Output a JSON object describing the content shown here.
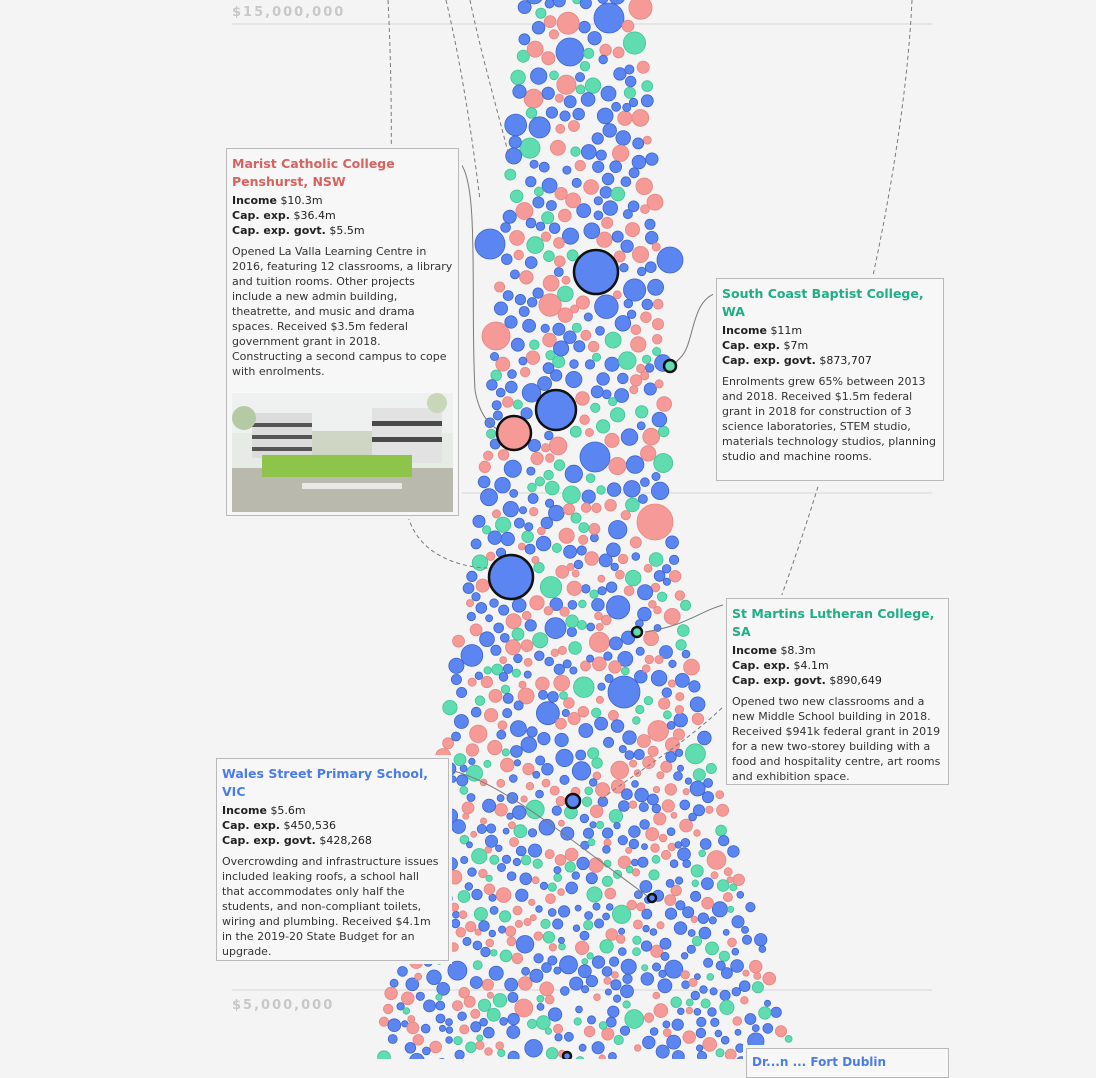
{
  "chart_data": {
    "type": "scatter",
    "subtype": "beeswarm",
    "y_axis": {
      "tick_labels": [
        "$15,000,000",
        "$5,000,000"
      ]
    },
    "series_colors": {
      "blue": "#5b86f2",
      "pink": "#f59a97",
      "teal": "#5fdcb0"
    },
    "highlighted": [
      {
        "school": "Marist Catholic College Penshurst, NSW",
        "income": "$10.3m",
        "cap_exp": "$36.4m",
        "cap_exp_govt": "$5.5m"
      },
      {
        "school": "South Coast Baptist College, WA",
        "income": "$11m",
        "cap_exp": "$7m",
        "cap_exp_govt": "$873,707"
      },
      {
        "school": "St Martins Lutheran College, SA",
        "income": "$8.3m",
        "cap_exp": "$4.1m",
        "cap_exp_govt": "$890,649"
      },
      {
        "school": "Wales Street Primary School, VIC",
        "income": "$5.6m",
        "cap_exp": "$450,536",
        "cap_exp_govt": "$428,268"
      }
    ]
  },
  "axis": {
    "label_top": "$15,000,000",
    "label_bottom": "$5,000,000"
  },
  "colors": {
    "pink_title": "#d9615e",
    "teal_title": "#1fae86",
    "blue_title": "#4a7de8"
  },
  "cards": {
    "marist": {
      "name_line1": "Marist Catholic College",
      "name_line2": "Penshurst, NSW",
      "income_label": "Income",
      "income": "$10.3m",
      "capexp_label": "Cap. exp.",
      "capexp": "$36.4m",
      "govt_label": "Cap. exp. govt.",
      "govt": "$5.5m",
      "desc": "Opened La Valla Learning Centre in 2016, featuring 12 classrooms, a library and tuition rooms. Other projects include a new admin building, theatrette, and music and drama spaces. Received $3.5m federal government grant in 2018. Constructing a second campus to cope with enrolments."
    },
    "southcoast": {
      "name": "South Coast Baptist College, WA",
      "income_label": "Income",
      "income": "$11m",
      "capexp_label": "Cap. exp.",
      "capexp": "$7m",
      "govt_label": "Cap. exp. govt.",
      "govt": "$873,707",
      "desc": "Enrolments grew 65% between 2013 and 2018. Received $1.5m federal grant in 2018 for construction of 3 science laboratories, STEM studio, materials technology studios, planning studio and machine rooms."
    },
    "stmartins": {
      "name": "St Martins Lutheran College, SA",
      "income_label": "Income",
      "income": "$8.3m",
      "capexp_label": "Cap. exp.",
      "capexp": "$4.1m",
      "govt_label": "Cap. exp. govt.",
      "govt": "$890,649",
      "desc": "Opened two new classrooms and a new Middle School building in 2018. Received $941k federal grant in 2019 for a new two-storey building with a food and hospitality centre, art rooms and exhibition space."
    },
    "wales": {
      "name": "Wales Street Primary School, VIC",
      "income_label": "Income",
      "income": "$5.6m",
      "capexp_label": "Cap. exp.",
      "capexp": "$450,536",
      "govt_label": "Cap. exp. govt.",
      "govt": "$428,268",
      "desc": "Overcrowding and infrastructure issues included leaking roofs, a school hall that accommodates only half the students, and non-compliant toilets, wiring and plumbing. Received $4.1m in the 2019-20 State Budget for an upgrade."
    },
    "partial": {
      "name": "Dr...n ... Fort Dublin"
    }
  }
}
